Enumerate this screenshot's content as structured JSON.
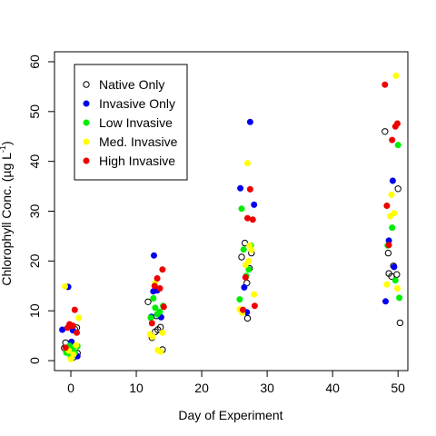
{
  "chart_data": {
    "type": "scatter",
    "xlabel": "Day of Experiment",
    "ylabel_main": "Chlorophyll Conc. (µg L",
    "ylabel_sup": "-1",
    "ylabel_end": ")",
    "xlim": [
      -2.5,
      51.5
    ],
    "ylim": [
      -2.0,
      62.0
    ],
    "x_ticks": [
      0,
      10,
      20,
      30,
      40,
      50
    ],
    "y_ticks": [
      0,
      10,
      20,
      30,
      40,
      50,
      60
    ],
    "legend_position": "top-left",
    "series": [
      {
        "name": "Native Only",
        "marker": "open",
        "color": "#000000",
        "points": [
          [
            -1.0,
            2.5
          ],
          [
            -0.8,
            3.6
          ],
          [
            0.2,
            1.9
          ],
          [
            0.4,
            0.7
          ],
          [
            0.6,
            6.3
          ],
          [
            0.9,
            6.6
          ],
          [
            -0.5,
            2.2
          ],
          [
            1.0,
            1.5
          ],
          [
            11.8,
            11.8
          ],
          [
            12.4,
            4.6
          ],
          [
            12.9,
            5.8
          ],
          [
            13.3,
            6.2
          ],
          [
            13.7,
            6.7
          ],
          [
            14.0,
            2.2
          ],
          [
            13.1,
            9.0
          ],
          [
            26.1,
            20.8
          ],
          [
            26.6,
            23.6
          ],
          [
            27.0,
            8.5
          ],
          [
            27.3,
            18.5
          ],
          [
            27.6,
            21.6
          ],
          [
            26.9,
            15.6
          ],
          [
            48.0,
            46.0
          ],
          [
            48.5,
            21.6
          ],
          [
            48.6,
            17.5
          ],
          [
            49.3,
            19.0
          ],
          [
            49.8,
            17.3
          ],
          [
            50.0,
            34.5
          ],
          [
            50.3,
            7.6
          ],
          [
            49.0,
            16.9
          ]
        ]
      },
      {
        "name": "Invasive Only",
        "marker": "filled",
        "color": "#0000ee",
        "points": [
          [
            -1.3,
            6.2
          ],
          [
            -0.4,
            14.8
          ],
          [
            0.1,
            3.8
          ],
          [
            0.3,
            6.1
          ],
          [
            0.5,
            1.3
          ],
          [
            1.0,
            0.9
          ],
          [
            12.3,
            8.8
          ],
          [
            12.7,
            21.1
          ],
          [
            13.2,
            14.1
          ],
          [
            13.8,
            8.7
          ],
          [
            12.6,
            13.9
          ],
          [
            25.9,
            34.6
          ],
          [
            26.5,
            14.7
          ],
          [
            26.9,
            9.7
          ],
          [
            27.4,
            47.9
          ],
          [
            28.0,
            31.3
          ],
          [
            48.1,
            11.9
          ],
          [
            48.6,
            24.1
          ],
          [
            49.2,
            36.1
          ],
          [
            49.4,
            18.8
          ]
        ]
      },
      {
        "name": "Low Invasive",
        "marker": "filled",
        "color": "#00ee00",
        "points": [
          [
            -0.7,
            1.6
          ],
          [
            -0.2,
            3.0
          ],
          [
            0.2,
            2.3
          ],
          [
            0.6,
            1.6
          ],
          [
            1.0,
            2.9
          ],
          [
            0.0,
            0.8
          ],
          [
            12.2,
            8.6
          ],
          [
            12.6,
            12.5
          ],
          [
            12.9,
            10.6
          ],
          [
            13.2,
            9.3
          ],
          [
            13.6,
            9.8
          ],
          [
            14.1,
            11.0
          ],
          [
            25.8,
            12.3
          ],
          [
            26.1,
            30.5
          ],
          [
            26.4,
            22.3
          ],
          [
            26.8,
            17.0
          ],
          [
            27.2,
            18.3
          ],
          [
            27.5,
            23.1
          ],
          [
            48.4,
            23.1
          ],
          [
            49.1,
            26.7
          ],
          [
            49.6,
            16.1
          ],
          [
            50.0,
            43.3
          ],
          [
            50.2,
            12.6
          ]
        ]
      },
      {
        "name": "Med. Invasive",
        "marker": "filled",
        "color": "#ffff00",
        "points": [
          [
            -0.9,
            14.9
          ],
          [
            -0.3,
            2.0
          ],
          [
            0.0,
            0.3
          ],
          [
            0.4,
            1.2
          ],
          [
            0.8,
            3.1
          ],
          [
            1.2,
            8.6
          ],
          [
            12.1,
            5.3
          ],
          [
            12.5,
            4.8
          ],
          [
            12.9,
            15.6
          ],
          [
            13.3,
            2.1
          ],
          [
            13.7,
            1.8
          ],
          [
            14.0,
            5.6
          ],
          [
            25.8,
            10.3
          ],
          [
            26.2,
            9.6
          ],
          [
            26.7,
            19.2
          ],
          [
            27.0,
            39.6
          ],
          [
            27.3,
            23.1
          ],
          [
            27.6,
            22.2
          ],
          [
            28.0,
            13.3
          ],
          [
            27.2,
            20.0
          ],
          [
            48.3,
            15.3
          ],
          [
            48.8,
            29.0
          ],
          [
            49.0,
            33.3
          ],
          [
            49.4,
            29.6
          ],
          [
            49.7,
            57.2
          ],
          [
            49.9,
            14.5
          ]
        ]
      },
      {
        "name": "High Invasive",
        "marker": "filled",
        "color": "#ee0000",
        "points": [
          [
            -0.8,
            2.6
          ],
          [
            -0.2,
            7.3
          ],
          [
            0.3,
            7.0
          ],
          [
            0.6,
            10.2
          ],
          [
            0.9,
            5.6
          ],
          [
            -0.5,
            6.6
          ],
          [
            12.4,
            7.5
          ],
          [
            12.8,
            15.0
          ],
          [
            13.2,
            16.5
          ],
          [
            13.6,
            14.5
          ],
          [
            14.0,
            18.3
          ],
          [
            14.2,
            10.8
          ],
          [
            26.3,
            10.2
          ],
          [
            26.7,
            16.7
          ],
          [
            27.0,
            28.6
          ],
          [
            27.4,
            34.4
          ],
          [
            27.8,
            28.3
          ],
          [
            28.1,
            11.0
          ],
          [
            48.0,
            55.4
          ],
          [
            48.3,
            31.1
          ],
          [
            48.6,
            23.2
          ],
          [
            49.1,
            44.3
          ],
          [
            49.6,
            47.0
          ],
          [
            49.9,
            47.6
          ]
        ]
      }
    ]
  }
}
